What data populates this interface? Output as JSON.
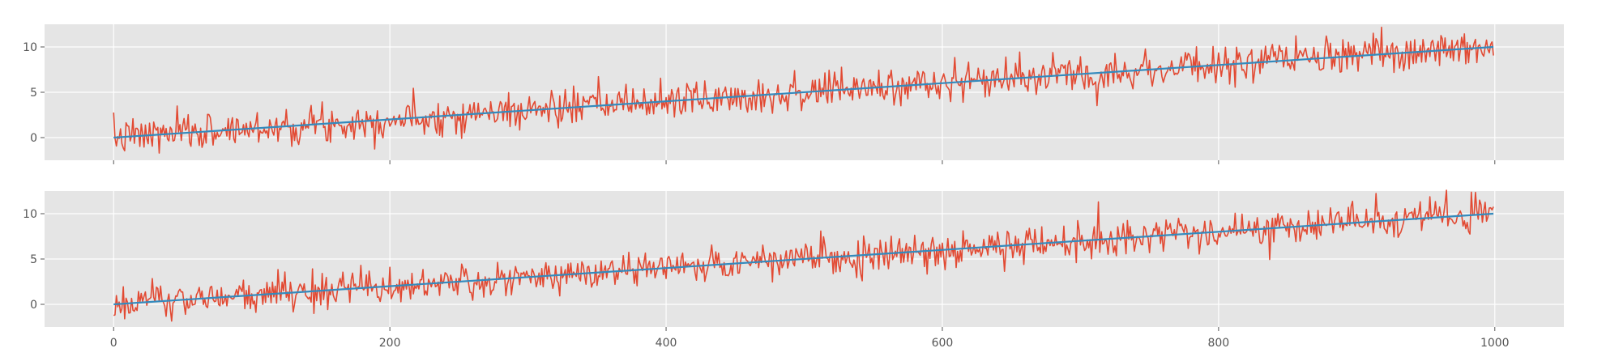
{
  "chart_data": [
    {
      "type": "line",
      "title": "",
      "xlabel": "",
      "ylabel": "",
      "xlim": [
        -50,
        1050
      ],
      "ylim": [
        -2.5,
        12.5
      ],
      "xticks": [
        0,
        200,
        400,
        600,
        800,
        1000
      ],
      "xtick_labels_visible": false,
      "yticks": [
        0,
        5,
        10
      ],
      "ytick_labels": [
        "0",
        "5",
        "10"
      ],
      "grid": true,
      "style": "ggplot",
      "noise": {
        "n": 1000,
        "x_start": 0,
        "x_end": 999,
        "trend_start": 0,
        "trend_end": 10,
        "std": 1.0,
        "seed": 7,
        "color": "#E24A33"
      },
      "trend": {
        "x": [
          0,
          999
        ],
        "y": [
          0,
          10
        ],
        "color": "#348ABD"
      }
    },
    {
      "type": "line",
      "title": "",
      "xlabel": "",
      "ylabel": "",
      "xlim": [
        -50,
        1050
      ],
      "ylim": [
        -2.5,
        12.5
      ],
      "xticks": [
        0,
        200,
        400,
        600,
        800,
        1000
      ],
      "xtick_labels": [
        "0",
        "200",
        "400",
        "600",
        "800",
        "1000"
      ],
      "xtick_labels_visible": true,
      "yticks": [
        0,
        5,
        10
      ],
      "ytick_labels": [
        "0",
        "5",
        "10"
      ],
      "grid": true,
      "style": "ggplot",
      "noise": {
        "n": 1000,
        "x_start": 0,
        "x_end": 999,
        "trend_start": 0,
        "trend_end": 10,
        "std": 1.0,
        "seed": 21,
        "color": "#E24A33"
      },
      "trend": {
        "x": [
          0,
          999
        ],
        "y": [
          0,
          10
        ],
        "color": "#348ABD"
      }
    }
  ]
}
